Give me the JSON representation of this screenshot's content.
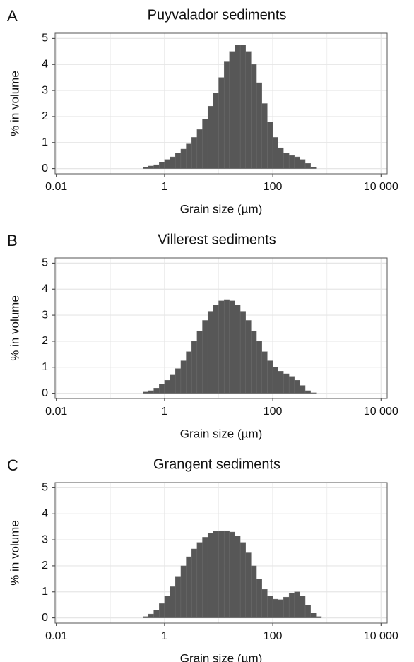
{
  "chart_data": [
    {
      "type": "histogram",
      "panel_label": "A",
      "title": "Puyvalador sediments",
      "x_label": "Grain size (µm)",
      "y_label": "% in volume",
      "bins": [
        0.398,
        0.501,
        0.631,
        0.794,
        1,
        1.26,
        1.58,
        2,
        2.51,
        3.16,
        3.98,
        5.01,
        6.31,
        7.94,
        10,
        12.6,
        15.8,
        20,
        25.1,
        31.6,
        39.8,
        50.1,
        63.1,
        79.4,
        100,
        126,
        158,
        200,
        251,
        316,
        398,
        501,
        631,
        794,
        1000,
        1259
      ],
      "values": [
        0.05,
        0.1,
        0.15,
        0.25,
        0.35,
        0.45,
        0.6,
        0.75,
        0.95,
        1.2,
        1.5,
        1.9,
        2.4,
        2.9,
        3.5,
        4.1,
        4.5,
        4.75,
        4.75,
        4.5,
        4.0,
        3.3,
        2.5,
        1.8,
        1.2,
        0.8,
        0.6,
        0.5,
        0.45,
        0.35,
        0.2,
        0.05,
        0,
        0,
        0
      ],
      "color": "#575757",
      "log_x": true,
      "xlim": [
        0.0095,
        13000
      ],
      "ylim": [
        -0.2,
        5.2
      ],
      "xticks": [
        0.01,
        1,
        100,
        {
          "value": 10000,
          "label": "10 000"
        }
      ],
      "x_minor_grid": [
        0.1,
        10,
        1000
      ],
      "yticks": [
        0,
        1,
        2,
        3,
        4,
        5
      ],
      "grid": true
    },
    {
      "type": "histogram",
      "panel_label": "B",
      "title": "Villerest sediments",
      "x_label": "Grain size (µm)",
      "y_label": "% in volume",
      "bins": [
        0.398,
        0.501,
        0.631,
        0.794,
        1,
        1.26,
        1.58,
        2,
        2.51,
        3.16,
        3.98,
        5.01,
        6.31,
        7.94,
        10,
        12.6,
        15.8,
        20,
        25.1,
        31.6,
        39.8,
        50.1,
        63.1,
        79.4,
        100,
        126,
        158,
        200,
        251,
        316,
        398,
        501,
        631,
        794,
        1000,
        1259
      ],
      "values": [
        0.05,
        0.1,
        0.2,
        0.35,
        0.5,
        0.7,
        0.95,
        1.25,
        1.6,
        2.0,
        2.4,
        2.8,
        3.15,
        3.4,
        3.55,
        3.6,
        3.55,
        3.4,
        3.15,
        2.8,
        2.4,
        2.0,
        1.6,
        1.25,
        1.0,
        0.85,
        0.75,
        0.65,
        0.5,
        0.3,
        0.1,
        0.02,
        0,
        0,
        0
      ],
      "color": "#575757",
      "log_x": true,
      "xlim": [
        0.0095,
        13000
      ],
      "ylim": [
        -0.2,
        5.2
      ],
      "xticks": [
        0.01,
        1,
        100,
        {
          "value": 10000,
          "label": "10 000"
        }
      ],
      "x_minor_grid": [
        0.1,
        10,
        1000
      ],
      "yticks": [
        0,
        1,
        2,
        3,
        4,
        5
      ],
      "grid": true
    },
    {
      "type": "histogram",
      "panel_label": "C",
      "title": "Grangent sediments",
      "x_label": "Grain size (µm)",
      "y_label": "% in volume",
      "bins": [
        0.398,
        0.501,
        0.631,
        0.794,
        1,
        1.26,
        1.58,
        2,
        2.51,
        3.16,
        3.98,
        5.01,
        6.31,
        7.94,
        10,
        12.6,
        15.8,
        20,
        25.1,
        31.6,
        39.8,
        50.1,
        63.1,
        79.4,
        100,
        126,
        158,
        200,
        251,
        316,
        398,
        501,
        631,
        794,
        1000,
        1259
      ],
      "values": [
        0.05,
        0.15,
        0.3,
        0.55,
        0.85,
        1.2,
        1.6,
        2.0,
        2.35,
        2.65,
        2.9,
        3.1,
        3.25,
        3.33,
        3.35,
        3.35,
        3.3,
        3.15,
        2.9,
        2.5,
        2.0,
        1.5,
        1.1,
        0.85,
        0.72,
        0.7,
        0.8,
        0.95,
        1.0,
        0.85,
        0.5,
        0.2,
        0.05,
        0,
        0
      ],
      "color": "#575757",
      "log_x": true,
      "xlim": [
        0.0095,
        13000
      ],
      "ylim": [
        -0.2,
        5.2
      ],
      "xticks": [
        0.01,
        1,
        100,
        {
          "value": 10000,
          "label": "10 000"
        }
      ],
      "x_minor_grid": [
        0.1,
        10,
        1000
      ],
      "yticks": [
        0,
        1,
        2,
        3,
        4,
        5
      ],
      "grid": true
    }
  ]
}
